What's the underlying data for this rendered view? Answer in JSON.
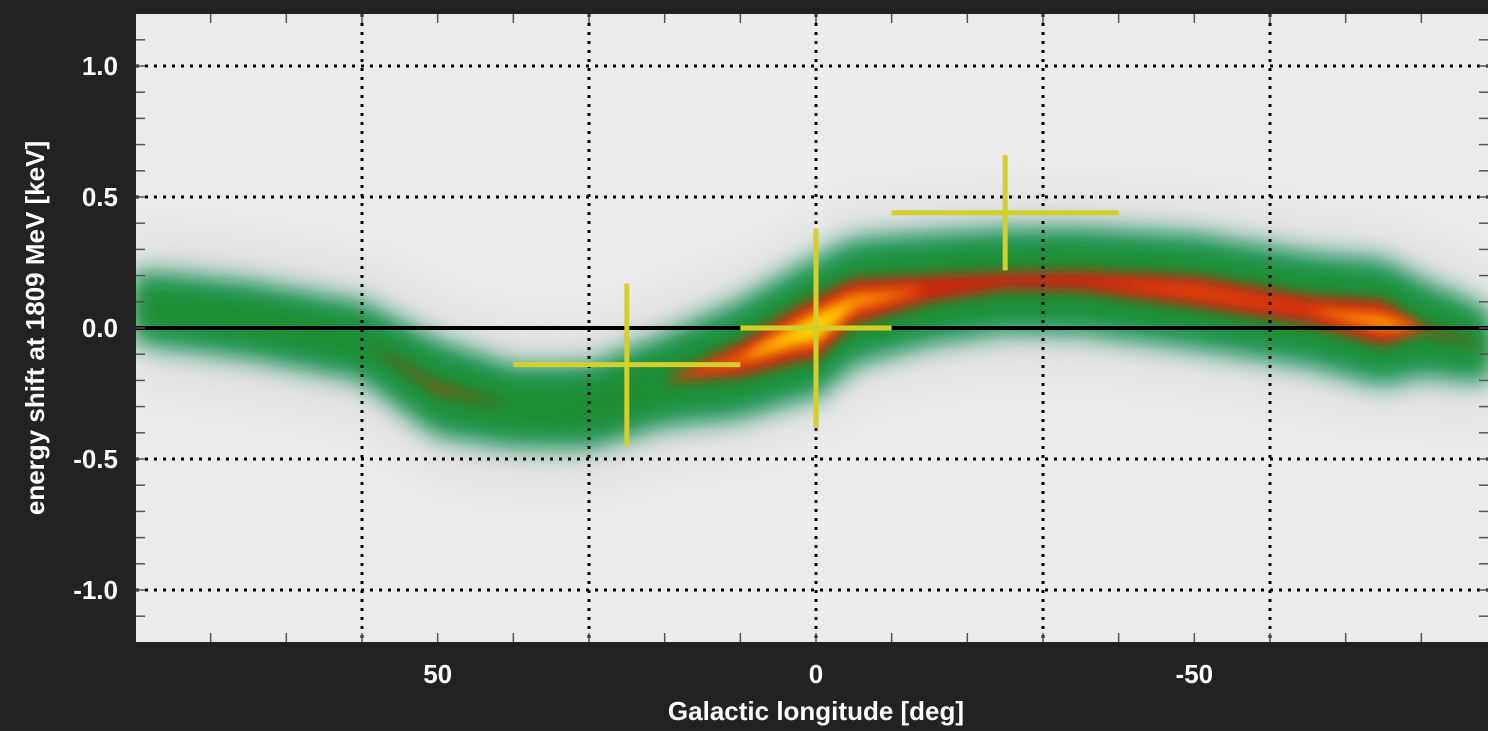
{
  "chart_data": {
    "type": "heatmap",
    "title": "",
    "xlabel": "Galactic longitude [deg]",
    "ylabel": "energy shift at 1809 MeV [keV]",
    "xlim": [
      90,
      -89
    ],
    "ylim": [
      -1.2,
      1.2
    ],
    "x_ticks": [
      50,
      0,
      -50
    ],
    "x_tick_labels": [
      "50",
      "0",
      "-50"
    ],
    "y_ticks": [
      1.0,
      0.5,
      0.0,
      -0.5,
      -1.0
    ],
    "y_tick_labels": [
      "1.0",
      "0.5",
      "0.0",
      "-0.5",
      "-1.0"
    ],
    "x_gridlines": [
      60,
      30,
      0,
      -30,
      -60
    ],
    "y_gridlines": [
      1.0,
      0.5,
      -0.5,
      -1.0
    ],
    "grid": "dotted",
    "reference_line_y": 0.0,
    "colormap": [
      "#f0f0f0",
      "#c8c8c8",
      "#1f9a6e",
      "#1e8c2a",
      "#d81c10",
      "#ff8a00",
      "#ffe600"
    ],
    "ridge": {
      "name": "emission ridge",
      "points": [
        {
          "x": 90,
          "y": 0.08,
          "intensity": 0.25
        },
        {
          "x": 75,
          "y": 0.03,
          "intensity": 0.28
        },
        {
          "x": 60,
          "y": -0.05,
          "intensity": 0.3
        },
        {
          "x": 50,
          "y": -0.23,
          "intensity": 0.5
        },
        {
          "x": 40,
          "y": -0.3,
          "intensity": 0.34
        },
        {
          "x": 30,
          "y": -0.3,
          "intensity": 0.36
        },
        {
          "x": 20,
          "y": -0.2,
          "intensity": 0.45
        },
        {
          "x": 10,
          "y": -0.12,
          "intensity": 0.75
        },
        {
          "x": 3,
          "y": -0.03,
          "intensity": 0.92
        },
        {
          "x": 0,
          "y": 0.0,
          "intensity": 1.0
        },
        {
          "x": -5,
          "y": 0.1,
          "intensity": 0.85
        },
        {
          "x": -15,
          "y": 0.15,
          "intensity": 0.68
        },
        {
          "x": -25,
          "y": 0.18,
          "intensity": 0.6
        },
        {
          "x": -35,
          "y": 0.18,
          "intensity": 0.62
        },
        {
          "x": -50,
          "y": 0.14,
          "intensity": 0.72
        },
        {
          "x": -65,
          "y": 0.07,
          "intensity": 0.7
        },
        {
          "x": -75,
          "y": 0.02,
          "intensity": 0.85
        },
        {
          "x": -80,
          "y": 0.0,
          "intensity": 0.5
        },
        {
          "x": -89,
          "y": -0.07,
          "intensity": 0.25
        }
      ]
    },
    "error_crosses": [
      {
        "x": 25,
        "y": -0.14,
        "x_err": 15,
        "y_err": 0.31
      },
      {
        "x": 0,
        "y": 0.0,
        "x_err": 10,
        "y_err": 0.38
      },
      {
        "x": -25,
        "y": 0.44,
        "x_err": 15,
        "y_err": 0.22
      }
    ],
    "cross_color": "#d4cf2a",
    "background_color": "#222222"
  }
}
